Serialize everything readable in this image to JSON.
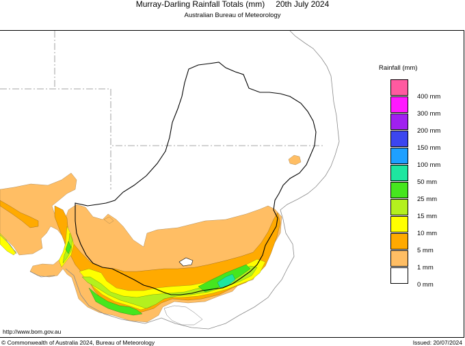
{
  "header": {
    "title": "Murray-Darling Rainfall Totals (mm)",
    "date": "20th July 2024",
    "subtitle": "Australian Bureau of Meteorology"
  },
  "legend": {
    "title": "Rainfall (mm)",
    "items": [
      {
        "label": "400 mm",
        "color": "#ff5aa0"
      },
      {
        "label": "300 mm",
        "color": "#ff18ff"
      },
      {
        "label": "200 mm",
        "color": "#a020f0"
      },
      {
        "label": "150 mm",
        "color": "#3c46f0"
      },
      {
        "label": "100 mm",
        "color": "#1ea0ff"
      },
      {
        "label": "50 mm",
        "color": "#1ee6a0"
      },
      {
        "label": "25 mm",
        "color": "#46e61e"
      },
      {
        "label": "15 mm",
        "color": "#b4f01e"
      },
      {
        "label": "10 mm",
        "color": "#ffff00"
      },
      {
        "label": "5 mm",
        "color": "#ffaa00"
      },
      {
        "label": "1 mm",
        "color": "#ffbe64"
      },
      {
        "label": "0 mm",
        "color": "#ffffff"
      }
    ]
  },
  "footer": {
    "url": "http://www.bom.gov.au",
    "copyright": "© Commonwealth of Australia 2024, Bureau of Meteorology",
    "issued": "Issued: 20/07/2024"
  }
}
